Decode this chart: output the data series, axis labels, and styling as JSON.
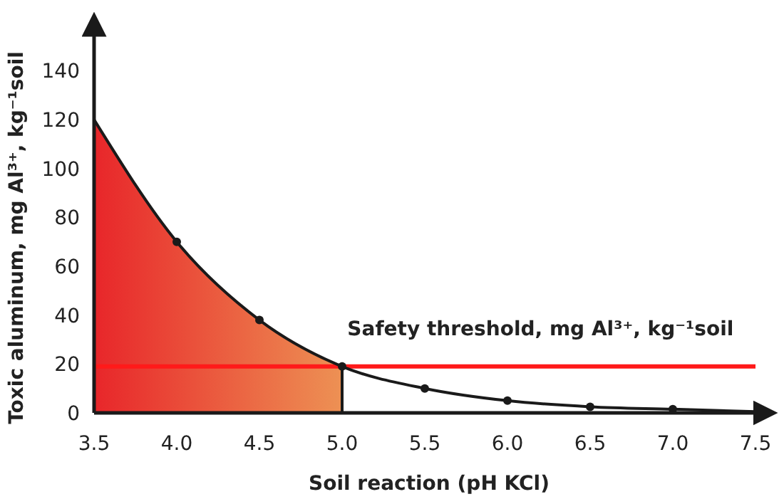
{
  "chart_data": {
    "type": "line",
    "xlabel": "Soil reaction (pH KCl)",
    "ylabel": "Toxic aluminum, mg Al³⁺, kg⁻¹soil",
    "series": [
      {
        "type": "area",
        "color": "#e8262a",
        "x": [
          3.5,
          4.0,
          4.5,
          5.0
        ],
        "values": [
          120,
          70,
          38,
          19
        ]
      },
      {
        "color": "#1a1a1a",
        "marker": "none",
        "x": [
          3.5,
          4.0,
          4.5,
          5.0,
          5.5,
          6.0,
          6.5,
          7.0,
          7.5
        ],
        "values": [
          120,
          70,
          38,
          19,
          10,
          5,
          2.5,
          1.5,
          0.5
        ]
      },
      {
        "type": "scatter",
        "color": "#1a1a1a",
        "marker": "circle",
        "x": [
          4.0,
          4.5,
          5.0,
          5.5,
          6.0,
          6.5,
          7.0
        ],
        "values": [
          70,
          38,
          19,
          10,
          5,
          2.5,
          1.5
        ]
      }
    ],
    "xlim": [
      3.5,
      7.5
    ],
    "xticks": [
      {
        "value": 3.5,
        "label": "3.5"
      },
      {
        "value": 4,
        "label": "4.0"
      },
      {
        "value": 4.5,
        "label": "4.5"
      },
      {
        "value": 5,
        "label": "5.0"
      },
      {
        "value": 5.5,
        "label": "5.5"
      },
      {
        "value": 6,
        "label": "6.0"
      },
      {
        "value": 6.5,
        "label": "6.5"
      },
      {
        "value": 7,
        "label": "7.0"
      },
      {
        "value": 7.5,
        "label": "7.5"
      }
    ],
    "ylim": [
      0,
      155
    ],
    "yticks": [
      0,
      20,
      40,
      60,
      80,
      100,
      120,
      140
    ],
    "ref_lines": [
      {
        "axis": "y",
        "value": 19,
        "label": "Safety threshold, mg Al³⁺, kg⁻¹soil",
        "color": "#ff1a1a"
      }
    ]
  }
}
